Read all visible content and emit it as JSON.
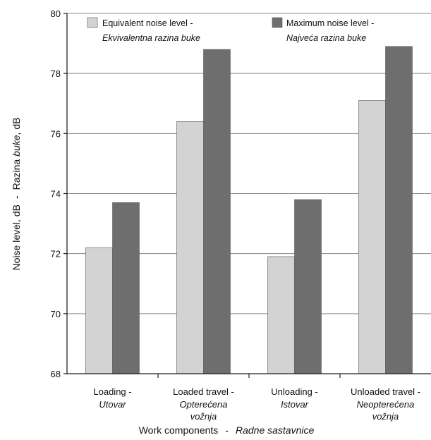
{
  "chart_data": {
    "type": "bar",
    "xlabel_en": "Work components",
    "xlabel_sep": "-",
    "xlabel_hr": "Radne sastavnice",
    "ylabel_en": "Noise level, dB",
    "ylabel_sep": "-",
    "ylabel_hr_1": "Razina",
    "ylabel_hr_2": "buke",
    "ylabel_hr_3": ", dB",
    "ylim": [
      68,
      80
    ],
    "yticks": [
      "68",
      "70",
      "72",
      "74",
      "76",
      "78",
      "80"
    ],
    "grid": true,
    "legend_position": "top",
    "categories": [
      {
        "en": "Loading -",
        "hr": [
          "Utovar"
        ]
      },
      {
        "en": "Loaded travel -",
        "hr": [
          "Opterećena",
          "vožnja"
        ]
      },
      {
        "en": "Unloading -",
        "hr": [
          "Istovar"
        ]
      },
      {
        "en": "Unloaded travel -",
        "hr": [
          "Neopterećena",
          "vožnja"
        ]
      }
    ],
    "series": [
      {
        "name_en": "Equivalent noise level -",
        "name_hr": "Ekvivalentna razina buke",
        "color": "#d3d3d3",
        "values": [
          72.2,
          76.4,
          71.9,
          77.1
        ]
      },
      {
        "name_en": "Maximum noise level -",
        "name_hr": "Najveća razina buke",
        "color": "#6e6e6e",
        "values": [
          73.7,
          78.8,
          73.8,
          78.9
        ]
      }
    ]
  }
}
